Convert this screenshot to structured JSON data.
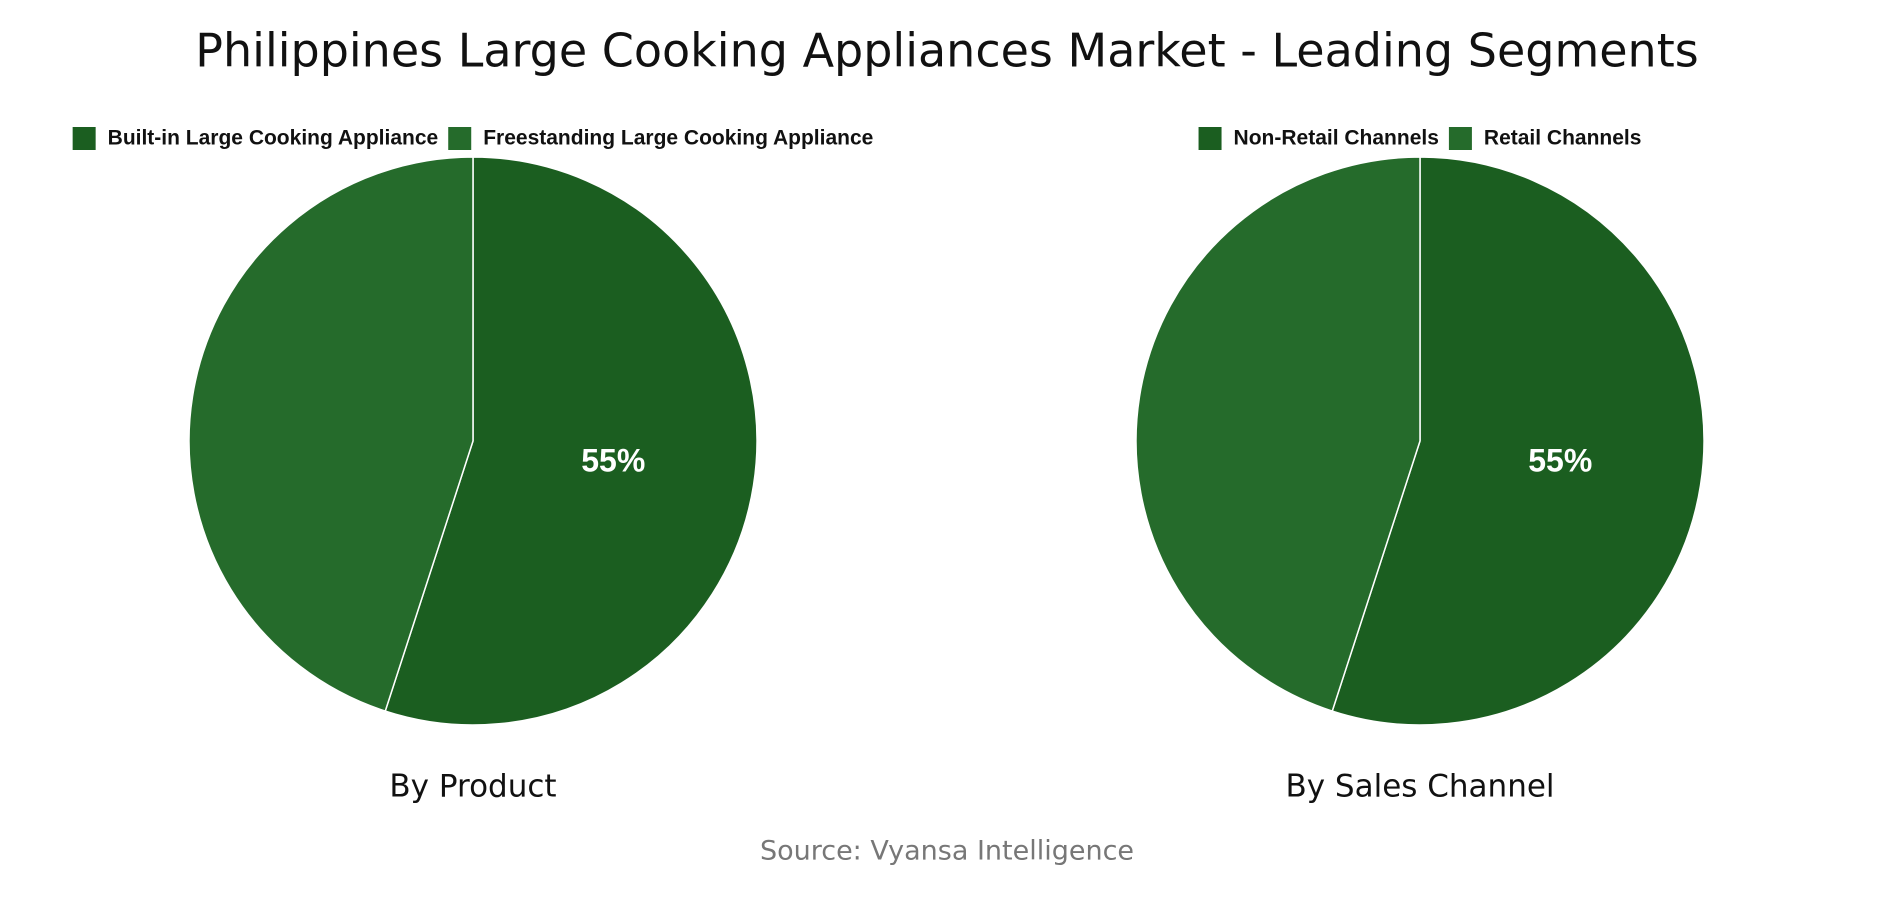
{
  "title": "Philippines Large Cooking Appliances Market - Leading Segments",
  "source": "Source: Vyansa Intelligence",
  "chart_data": [
    {
      "type": "pie",
      "title": "By Product",
      "categories": [
        "Built-in Large Cooking Appliance",
        "Freestanding Large Cooking Appliance"
      ],
      "values": [
        55,
        45
      ],
      "value_labels": [
        "55%",
        null
      ],
      "colors": [
        "#1b5e20",
        "#256b2b"
      ]
    },
    {
      "type": "pie",
      "title": "By Sales Channel",
      "categories": [
        "Non-Retail Channels",
        "Retail Channels"
      ],
      "values": [
        55,
        45
      ],
      "value_labels": [
        "55%",
        null
      ],
      "colors": [
        "#1b5e20",
        "#256b2b"
      ]
    }
  ]
}
